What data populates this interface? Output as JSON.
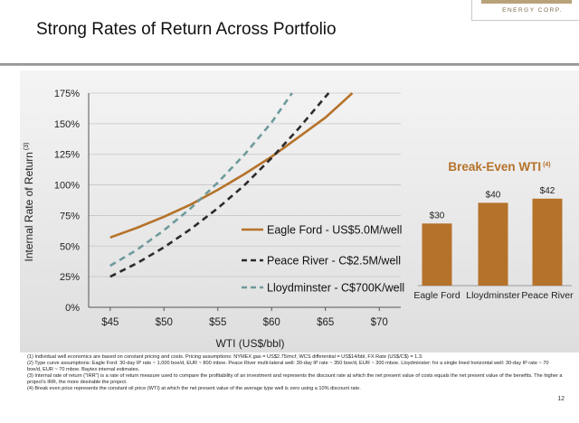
{
  "header": {
    "title": "Strong Rates of Return Across Portfolio",
    "logo_text": "ENERGY CORP."
  },
  "chart_data": [
    {
      "type": "line",
      "title": "",
      "xlabel": "WTI (US$/bbl)",
      "ylabel": "Internal Rate of Return",
      "ylabel_note": "(3)",
      "xlim": [
        43,
        72
      ],
      "ylim": [
        0,
        175
      ],
      "x_ticks": [
        45,
        50,
        55,
        60,
        65,
        70
      ],
      "x_tick_labels": [
        "$45",
        "$50",
        "$55",
        "$60",
        "$65",
        "$70"
      ],
      "y_ticks": [
        0,
        25,
        50,
        75,
        100,
        125,
        150,
        175
      ],
      "y_tick_labels": [
        "0%",
        "25%",
        "50%",
        "75%",
        "100%",
        "125%",
        "150%",
        "175%"
      ],
      "legend_position": "lower-right",
      "series": [
        {
          "name": "Eagle Ford - US$5.0M/well",
          "color": "#b5722a",
          "dash": "solid",
          "points": [
            [
              45,
              57
            ],
            [
              47.5,
              65
            ],
            [
              50,
              74
            ],
            [
              52.5,
              84
            ],
            [
              55,
              96
            ],
            [
              57.5,
              109
            ],
            [
              60,
              123
            ],
            [
              62.5,
              139
            ],
            [
              65,
              155
            ],
            [
              67.5,
              175
            ]
          ]
        },
        {
          "name": "Peace River - C$2.5M/well",
          "color": "#2b2b2b",
          "dash": "dashed",
          "points": [
            [
              45,
              25
            ],
            [
              47.5,
              36
            ],
            [
              50,
              49
            ],
            [
              52.5,
              64
            ],
            [
              55,
              81
            ],
            [
              57.5,
              100
            ],
            [
              60,
              122
            ],
            [
              62.5,
              146
            ],
            [
              65,
              172
            ],
            [
              65.3,
              175
            ]
          ]
        },
        {
          "name": "Lloydminster - C$700K/well",
          "color": "#6f9a9c",
          "dash": "dashed",
          "points": [
            [
              45,
              34
            ],
            [
              47.5,
              47
            ],
            [
              50,
              63
            ],
            [
              52.5,
              81
            ],
            [
              55,
              102
            ],
            [
              57.5,
              125
            ],
            [
              60,
              151
            ],
            [
              61.9,
              175
            ]
          ]
        }
      ]
    },
    {
      "type": "bar",
      "title": "Break-Even WTI",
      "title_note": "(4)",
      "categories": [
        "Eagle Ford",
        "Lloydminster",
        "Peace River"
      ],
      "values": [
        30,
        40,
        42
      ],
      "value_labels": [
        "$30",
        "$40",
        "$42"
      ],
      "color": "#b5722a",
      "ylim": [
        0,
        55
      ]
    }
  ],
  "footnotes": [
    "(1) Individual well economics are based on constant pricing and costs. Pricing assumptions: NYMEX gas = US$2.75/mcf, WCS differential = US$14/bbl, FX Rate (US$/C$) = 1.3.",
    "(2) Type curve assumptions: Eagle Ford: 30-day IP rate ~ 1,000 boe/d, EUR ~ 800 mboe. Peace River multi-lateral well: 30-day IP rate ~ 350 boe/d, EUR ~ 300 mboe. Lloydminster: for a single lined horizontal well: 30-day IP rate ~ 70 boe/d, EUR ~ 70 mboe. Baytex internal estimates.",
    "(3) Internal rate of return (\"IRR\") is a rate of return measure used to compare the profitability of an investment and represents the discount rate at which the net present value of costs equals the net present value of the benefits. The higher a project's IRR, the more desirable the project.",
    "(4) Break even price represents the constant oil price (WTI) at which the net present value of the average type well is zero using a 10% discount rate."
  ],
  "page_number": "12"
}
